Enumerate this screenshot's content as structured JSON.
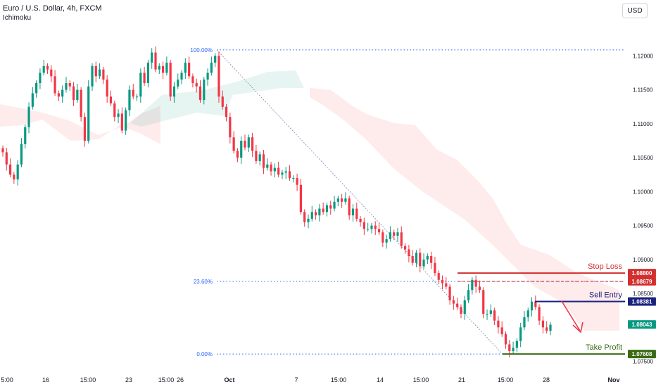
{
  "header": {
    "title": "Euro / U.S. Dollar, 4h, FXCM",
    "indicator": "Ichimoku",
    "currency_button": "USD"
  },
  "chart_data": {
    "type": "candlestick",
    "y_axis": {
      "ticks": [
        1.12,
        1.115,
        1.11,
        1.105,
        1.1,
        1.095,
        1.09,
        1.085,
        1.075
      ],
      "tick_labels": [
        "1.12000",
        "1.11500",
        "1.11000",
        "1.10500",
        "1.10000",
        "1.09500",
        "1.09000",
        "1.08500",
        "1.07500"
      ],
      "range": [
        1.0735,
        1.1245
      ]
    },
    "x_axis": {
      "labels": [
        "5:00",
        "16",
        "15:00",
        "23",
        "15:00",
        "26",
        "Oct",
        "7",
        "15:00",
        "14",
        "15:00",
        "21",
        "15:00",
        "28",
        "Nov"
      ]
    },
    "fibonacci": [
      {
        "label": "100.00%",
        "price": 1.12088
      },
      {
        "label": "23.60%",
        "price": 1.08679
      },
      {
        "label": "0.00%",
        "price": 1.07608
      }
    ],
    "levels": [
      {
        "name": "Stop Loss",
        "price": 1.088,
        "label": "1.08800",
        "color": "#d32f2f"
      },
      {
        "name": "Fib 23.6%",
        "price": 1.08679,
        "label": "1.08679",
        "color": "#d32f2f"
      },
      {
        "name": "Sell Entry",
        "price": 1.08381,
        "label": "1.08381",
        "color": "#1a237e"
      },
      {
        "name": "Current",
        "price": 1.08043,
        "label": "1.08043",
        "color": "#089981"
      },
      {
        "name": "Take Profit",
        "price": 1.07608,
        "label": "1.07608",
        "color": "#3a6b14"
      }
    ],
    "close_series": [
      1.1058,
      1.104,
      1.1025,
      1.1018,
      1.104,
      1.107,
      1.1095,
      1.1125,
      1.1145,
      1.116,
      1.1175,
      1.1185,
      1.118,
      1.117,
      1.1145,
      1.114,
      1.115,
      1.116,
      1.1155,
      1.1135,
      1.115,
      1.111,
      1.1075,
      1.1155,
      1.1185,
      1.117,
      1.118,
      1.1165,
      1.114,
      1.113,
      1.111,
      1.1115,
      1.109,
      1.112,
      1.115,
      1.114,
      1.114,
      1.1175,
      1.116,
      1.119,
      1.1205,
      1.118,
      1.1185,
      1.1175,
      1.119,
      1.114,
      1.1155,
      1.1165,
      1.1175,
      1.119,
      1.117,
      1.116,
      1.1155,
      1.1135,
      1.1165,
      1.1175,
      1.119,
      1.12,
      1.114,
      1.1125,
      1.111,
      1.108,
      1.106,
      1.105,
      1.1075,
      1.1065,
      1.108,
      1.106,
      1.1045,
      1.1055,
      1.1035,
      1.104,
      1.103,
      1.1035,
      1.1025,
      1.1028,
      1.103,
      1.102,
      1.102,
      1.101,
      1.097,
      1.0955,
      1.096,
      1.097,
      1.0965,
      1.0975,
      1.097,
      1.098,
      1.0975,
      1.0985,
      1.099,
      1.0985,
      1.099,
      1.0965,
      1.0975,
      1.096,
      1.0955,
      1.0945,
      1.0945,
      1.095,
      1.0945,
      1.094,
      1.0925,
      1.093,
      1.094,
      1.0935,
      1.094,
      1.092,
      1.0915,
      1.0905,
      1.0895,
      1.091,
      1.089,
      1.09,
      1.0905,
      1.0895,
      1.088,
      1.087,
      1.0865,
      1.086,
      1.084,
      1.0835,
      1.083,
      1.082,
      1.084,
      1.0855,
      1.087,
      1.086,
      1.0855,
      1.082,
      1.082,
      1.0825,
      1.081,
      1.08,
      1.079,
      1.0775,
      1.0765,
      1.077,
      1.078,
      1.08,
      1.0815,
      1.0825,
      1.0838,
      1.083,
      1.081,
      1.08,
      1.0795,
      1.0804
    ],
    "annotations": [
      "Stop Loss",
      "Sell Entry",
      "Take Profit"
    ]
  }
}
